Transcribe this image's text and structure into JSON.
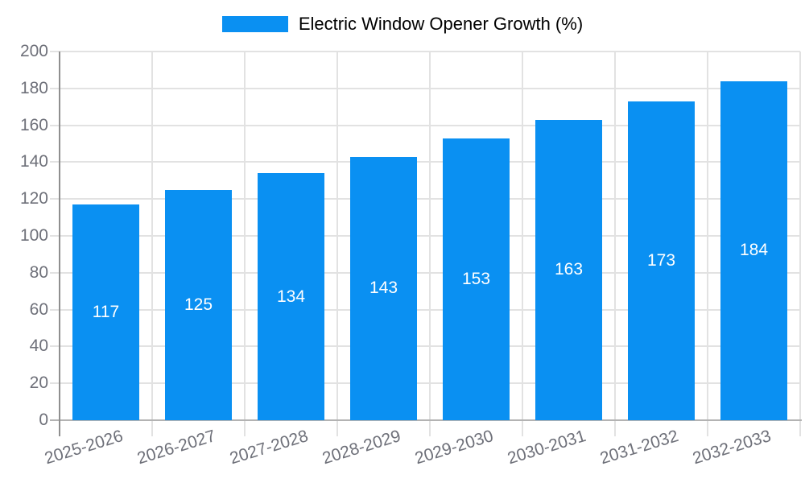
{
  "chart_data": {
    "type": "bar",
    "title": "Electric Window Opener Growth (%)",
    "legend": {
      "position": "top-center",
      "entries": [
        "Electric Window Opener Growth (%)"
      ]
    },
    "categories": [
      "2025-2026",
      "2026-2027",
      "2027-2028",
      "2028-2029",
      "2029-2030",
      "2030-2031",
      "2031-2032",
      "2032-2033"
    ],
    "series": [
      {
        "name": "Electric Window Opener Growth (%)",
        "values": [
          117,
          125,
          134,
          143,
          153,
          163,
          173,
          184
        ]
      }
    ],
    "xlabel": "",
    "ylabel": "",
    "ylim": [
      0,
      200
    ],
    "ytick_step": 20,
    "yticks": [
      0,
      20,
      40,
      60,
      80,
      100,
      120,
      140,
      160,
      180,
      200
    ],
    "grid": true,
    "value_label_position": "inside-middle",
    "colors": {
      "bar": "#0a90f2",
      "text": "#6e7079",
      "value_label": "#ffffff",
      "grid": "#e2e2e2",
      "axis_y": "#8f8f8f",
      "axis_x": "#b3b3b3",
      "background": "#ffffff"
    }
  }
}
